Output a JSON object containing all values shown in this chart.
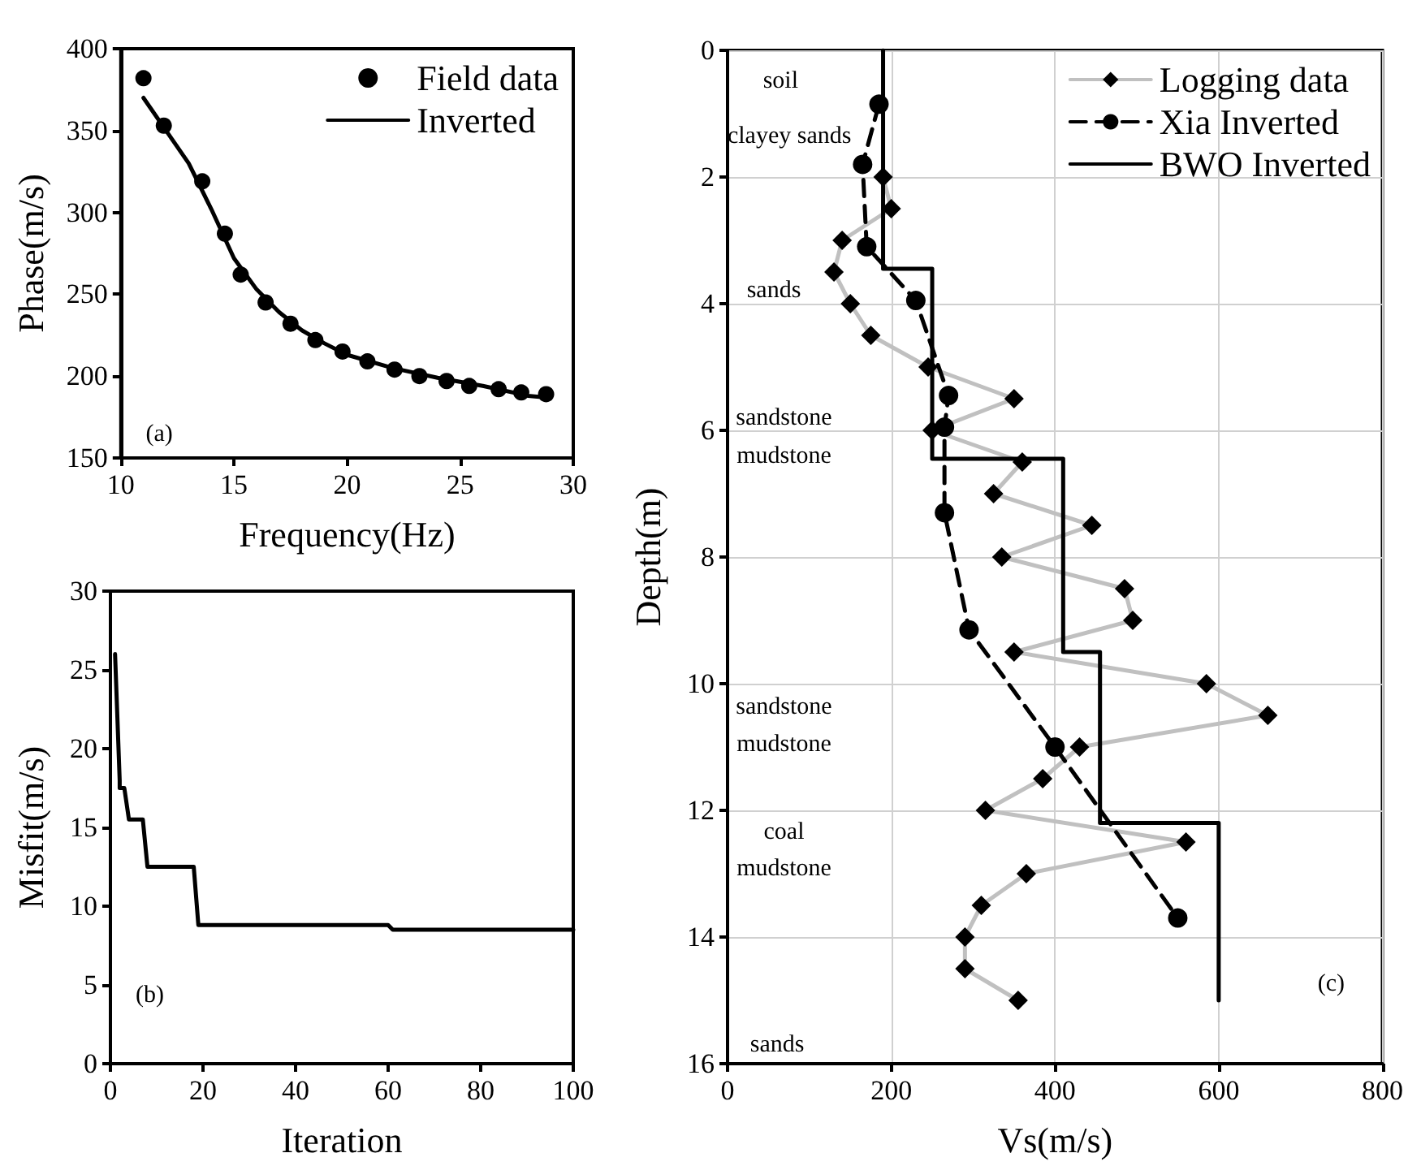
{
  "chart_data": [
    {
      "type": "scatter",
      "xlabel": "Frequency(Hz)",
      "ylabel": "Phase(m/s)",
      "xlim": [
        10,
        30
      ],
      "xticks": [
        10,
        15,
        20,
        25,
        30
      ],
      "ylim": [
        150,
        400
      ],
      "yticks": [
        150,
        200,
        250,
        300,
        350,
        400
      ],
      "grid": false,
      "legend": "top right",
      "annotations": [
        "(a)"
      ],
      "series": [
        {
          "name": "Field data",
          "marker": "circle",
          "color": "#000000",
          "x": [
            11,
            11.9,
            13.6,
            14.6,
            15.3,
            16.4,
            17.5,
            18.6,
            19.8,
            20.9,
            22.1,
            23.2,
            24.4,
            25.4,
            26.7,
            27.7,
            28.8
          ],
          "values": [
            382,
            353,
            319,
            287,
            262,
            245,
            232,
            222,
            215,
            209,
            204,
            200,
            197,
            194,
            192,
            190,
            189
          ]
        },
        {
          "name": "Inverted",
          "type": "line",
          "marker": "none",
          "line_style": "solid",
          "color": "#000000",
          "x": [
            11,
            12,
            13,
            14,
            15,
            16,
            17,
            18,
            19,
            20,
            22,
            24,
            26,
            28,
            28.8
          ],
          "values": [
            370,
            350,
            330,
            302,
            272,
            253,
            239,
            228,
            220,
            213,
            205,
            199,
            194,
            188,
            187
          ]
        }
      ]
    },
    {
      "type": "line",
      "xlabel": "Iteration",
      "ylabel": "Misfit(m/s)",
      "xlim": [
        0,
        100
      ],
      "xticks": [
        0,
        20,
        40,
        60,
        80,
        100
      ],
      "ylim": [
        0,
        30
      ],
      "yticks": [
        0,
        5,
        10,
        15,
        20,
        25,
        30
      ],
      "grid": false,
      "marker": "none",
      "line_style": "solid",
      "annotations": [
        "(b)"
      ],
      "series": [
        {
          "color": "#000000",
          "x": [
            1,
            2,
            2,
            3,
            4,
            7,
            8,
            18,
            19,
            60,
            61,
            100
          ],
          "values": [
            26,
            18,
            17.5,
            17.5,
            15.5,
            15.5,
            12.5,
            12.5,
            8.8,
            8.8,
            8.5,
            8.5
          ]
        }
      ]
    },
    {
      "type": "line",
      "xlabel": "Vs(m/s)",
      "ylabel": "Depth(m)",
      "xlim": [
        0,
        800
      ],
      "xticks": [
        0,
        200,
        400,
        600,
        800
      ],
      "ylim": [
        16,
        0
      ],
      "yticks": [
        0,
        2,
        4,
        6,
        8,
        10,
        12,
        14,
        16
      ],
      "grid": true,
      "legend": "top right",
      "annotations": [
        "soil",
        "clayey sands",
        "sands",
        "sandstone",
        "mudstone",
        "sandstone",
        "mudstone",
        "coal",
        "mudstone",
        "sands",
        "(c)"
      ],
      "series": [
        {
          "name": "Logging data",
          "marker": "diamond",
          "line_style": "solid",
          "color": "#c0c0c0",
          "x": [
            190,
            200,
            140,
            130,
            150,
            175,
            245,
            350,
            250,
            360,
            325,
            445,
            335,
            485,
            495,
            350,
            585,
            660,
            430,
            385,
            315,
            560,
            365,
            310,
            290,
            290,
            355
          ],
          "values": [
            2,
            2.5,
            3,
            3.5,
            4,
            4.5,
            5,
            5.5,
            6,
            6.5,
            7,
            7.5,
            8,
            8.5,
            9,
            9.5,
            10,
            10.5,
            11,
            11.5,
            12,
            12.5,
            13,
            13.5,
            14,
            14.5,
            15
          ]
        },
        {
          "name": "Xia Inverted",
          "marker": "circle",
          "line_style": "dashed",
          "color": "#000000",
          "x": [
            185,
            165,
            170,
            230,
            270,
            265,
            265,
            295,
            400,
            550
          ],
          "values": [
            0.85,
            1.8,
            3.1,
            3.95,
            5.45,
            5.95,
            7.3,
            9.15,
            11,
            13.7
          ]
        },
        {
          "name": "BWO Inverted",
          "marker": "none",
          "line_style": "solid",
          "color": "#000000",
          "x": [
            190,
            190,
            250,
            250,
            410,
            410,
            455,
            455,
            600,
            600
          ],
          "values": [
            0,
            3.45,
            3.45,
            6.45,
            6.45,
            9.5,
            9.5,
            12.2,
            12.2,
            15
          ]
        }
      ]
    }
  ]
}
